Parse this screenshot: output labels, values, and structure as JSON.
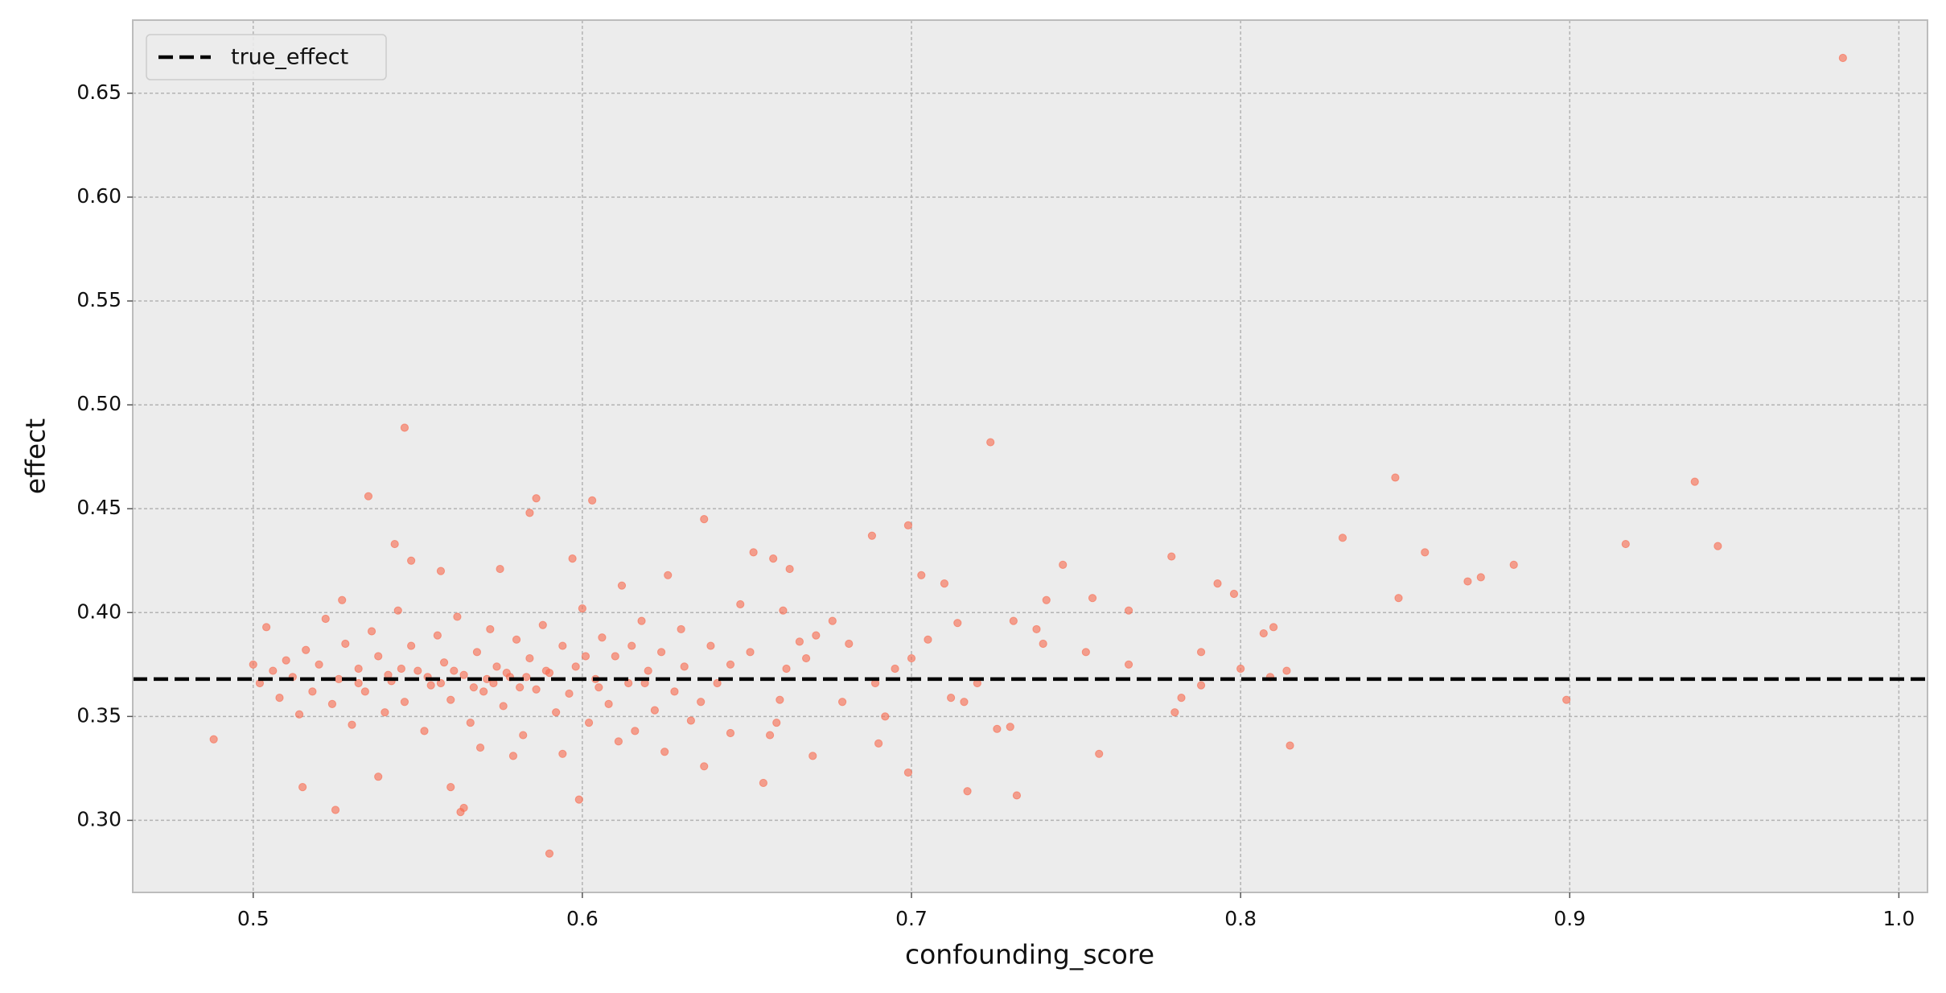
{
  "chart_data": {
    "type": "scatter",
    "xlabel": "confounding_score",
    "ylabel": "effect",
    "color": "#f8694c",
    "alpha": 0.6,
    "grid": true,
    "legend": "upper left",
    "xlim": [
      0.4634,
      1.0087
    ],
    "ylim": [
      0.2653,
      0.6852
    ],
    "xticks": [
      0.5,
      0.6,
      0.7,
      0.8,
      0.9,
      {
        "value": 1,
        "label": "1.0"
      }
    ],
    "yticks": [
      {
        "value": 0.3,
        "label": "0.30"
      },
      0.35,
      {
        "value": 0.4,
        "label": "0.40"
      },
      0.45,
      {
        "value": 0.5,
        "label": "0.50"
      },
      0.55,
      {
        "value": 0.6,
        "label": "0.60"
      },
      0.65
    ],
    "reference_line": {
      "name": "true_effect",
      "value": 0.368,
      "color": "#000000"
    },
    "x": [
      0.983,
      0.546,
      0.724,
      0.847,
      0.938,
      0.945,
      0.917,
      0.831,
      0.856,
      0.869,
      0.873,
      0.883,
      0.848,
      0.899,
      0.815,
      0.814,
      0.81,
      0.807,
      0.798,
      0.793,
      0.779,
      0.766,
      0.757,
      0.746,
      0.732,
      0.717,
      0.699,
      0.699,
      0.688,
      0.488,
      0.515,
      0.525,
      0.535,
      0.586,
      0.603,
      0.59,
      0.599,
      0.637,
      0.655,
      0.67,
      0.637,
      0.584,
      0.543,
      0.563,
      0.56,
      0.564,
      0.538,
      0.78,
      0.782,
      0.788,
      0.788,
      0.8,
      0.809,
      0.766,
      0.753,
      0.755,
      0.74,
      0.738,
      0.741,
      0.731,
      0.726,
      0.73,
      0.72,
      0.716,
      0.712,
      0.714,
      0.705,
      0.703,
      0.71,
      0.7,
      0.695,
      0.692,
      0.69,
      0.689,
      0.679,
      0.681,
      0.676,
      0.671,
      0.666,
      0.662,
      0.66,
      0.659,
      0.657,
      0.661,
      0.663,
      0.658,
      0.652,
      0.648,
      0.645,
      0.641,
      0.639,
      0.636,
      0.633,
      0.63,
      0.628,
      0.626,
      0.624,
      0.622,
      0.62,
      0.618,
      0.616,
      0.614,
      0.612,
      0.61,
      0.608,
      0.606,
      0.604,
      0.602,
      0.6,
      0.598,
      0.596,
      0.594,
      0.592,
      0.59,
      0.588,
      0.586,
      0.584,
      0.582,
      0.58,
      0.578,
      0.576,
      0.574,
      0.572,
      0.57,
      0.568,
      0.566,
      0.564,
      0.562,
      0.56,
      0.558,
      0.556,
      0.554,
      0.552,
      0.55,
      0.548,
      0.546,
      0.544,
      0.542,
      0.54,
      0.538,
      0.536,
      0.534,
      0.532,
      0.53,
      0.528,
      0.526,
      0.524,
      0.522,
      0.52,
      0.518,
      0.516,
      0.514,
      0.512,
      0.51,
      0.508,
      0.506,
      0.504,
      0.502,
      0.5,
      0.527,
      0.548,
      0.557,
      0.575,
      0.597,
      0.569,
      0.579,
      0.594,
      0.611,
      0.625,
      0.645,
      0.571,
      0.573,
      0.577,
      0.581,
      0.553,
      0.557,
      0.545,
      0.561,
      0.567,
      0.583,
      0.605,
      0.619,
      0.532,
      0.541,
      0.589,
      0.601,
      0.615,
      0.631,
      0.651,
      0.668
    ],
    "values": [
      0.667,
      0.489,
      0.482,
      0.465,
      0.463,
      0.432,
      0.433,
      0.436,
      0.429,
      0.415,
      0.417,
      0.423,
      0.407,
      0.358,
      0.336,
      0.372,
      0.393,
      0.39,
      0.409,
      0.414,
      0.427,
      0.401,
      0.332,
      0.423,
      0.312,
      0.314,
      0.323,
      0.442,
      0.437,
      0.339,
      0.316,
      0.305,
      0.456,
      0.455,
      0.454,
      0.284,
      0.31,
      0.445,
      0.318,
      0.331,
      0.326,
      0.448,
      0.433,
      0.304,
      0.316,
      0.306,
      0.321,
      0.352,
      0.359,
      0.365,
      0.381,
      0.373,
      0.369,
      0.375,
      0.381,
      0.407,
      0.385,
      0.392,
      0.406,
      0.396,
      0.344,
      0.345,
      0.366,
      0.357,
      0.359,
      0.395,
      0.387,
      0.418,
      0.414,
      0.378,
      0.373,
      0.35,
      0.337,
      0.366,
      0.357,
      0.385,
      0.396,
      0.389,
      0.386,
      0.373,
      0.358,
      0.347,
      0.341,
      0.401,
      0.421,
      0.426,
      0.429,
      0.404,
      0.375,
      0.366,
      0.384,
      0.357,
      0.348,
      0.392,
      0.362,
      0.418,
      0.381,
      0.353,
      0.372,
      0.396,
      0.343,
      0.366,
      0.413,
      0.379,
      0.356,
      0.388,
      0.368,
      0.347,
      0.402,
      0.374,
      0.361,
      0.384,
      0.352,
      0.371,
      0.394,
      0.363,
      0.378,
      0.341,
      0.387,
      0.369,
      0.355,
      0.374,
      0.392,
      0.362,
      0.381,
      0.347,
      0.37,
      0.398,
      0.358,
      0.376,
      0.389,
      0.365,
      0.343,
      0.372,
      0.384,
      0.357,
      0.401,
      0.367,
      0.352,
      0.379,
      0.391,
      0.362,
      0.373,
      0.346,
      0.385,
      0.368,
      0.356,
      0.397,
      0.375,
      0.362,
      0.382,
      0.351,
      0.369,
      0.377,
      0.359,
      0.372,
      0.393,
      0.366,
      0.375,
      0.406,
      0.425,
      0.42,
      0.421,
      0.426,
      0.335,
      0.331,
      0.332,
      0.338,
      0.333,
      0.342,
      0.368,
      0.366,
      0.371,
      0.364,
      0.369,
      0.366,
      0.373,
      0.372,
      0.364,
      0.369,
      0.364,
      0.366,
      0.366,
      0.37,
      0.372,
      0.379,
      0.384,
      0.374,
      0.381,
      0.378
    ]
  }
}
